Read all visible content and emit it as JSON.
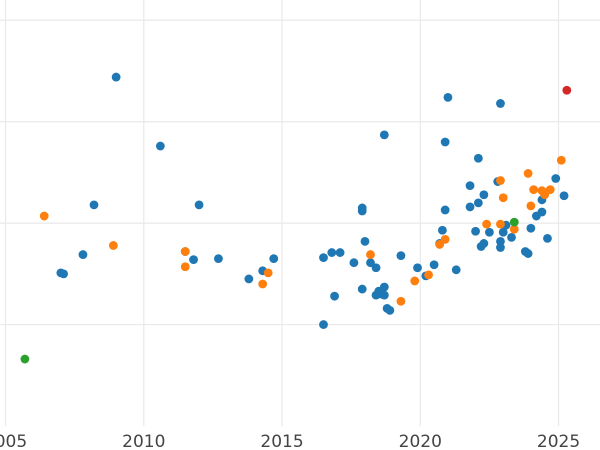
{
  "chart_data": {
    "type": "scatter",
    "title": "",
    "xlabel": "",
    "ylabel": "",
    "xlim": [
      2004.8,
      2026.5
    ],
    "ylim": [
      0,
      4.2
    ],
    "xticks": [
      2005,
      2010,
      2015,
      2020,
      2025
    ],
    "x_tick_labels": [
      "2005",
      "2010",
      "2015",
      "2020",
      "2025"
    ],
    "yticks": [
      1,
      2,
      3,
      4
    ],
    "grid": true,
    "legend": "none",
    "series": [
      {
        "color": "#1f77b4",
        "points": [
          [
            2007.0,
            1.51
          ],
          [
            2007.1,
            1.5
          ],
          [
            2007.8,
            1.69
          ],
          [
            2008.2,
            2.18
          ],
          [
            2009.0,
            3.44
          ],
          [
            2010.6,
            2.76
          ],
          [
            2011.5,
            1.72
          ],
          [
            2011.8,
            1.64
          ],
          [
            2012.0,
            2.18
          ],
          [
            2012.7,
            1.65
          ],
          [
            2013.8,
            1.45
          ],
          [
            2014.3,
            1.53
          ],
          [
            2014.7,
            1.65
          ],
          [
            2016.5,
            1.66
          ],
          [
            2016.5,
            1.0
          ],
          [
            2016.8,
            1.71
          ],
          [
            2016.9,
            1.28
          ],
          [
            2017.1,
            1.71
          ],
          [
            2017.6,
            1.61
          ],
          [
            2017.9,
            1.35
          ],
          [
            2017.9,
            2.15
          ],
          [
            2017.9,
            2.12
          ],
          [
            2018.0,
            1.82
          ],
          [
            2018.2,
            1.61
          ],
          [
            2018.4,
            1.56
          ],
          [
            2018.4,
            1.29
          ],
          [
            2018.5,
            1.33
          ],
          [
            2018.6,
            1.3
          ],
          [
            2018.7,
            1.37
          ],
          [
            2018.7,
            1.29
          ],
          [
            2018.8,
            1.16
          ],
          [
            2018.7,
            2.87
          ],
          [
            2018.9,
            1.14
          ],
          [
            2019.3,
            1.68
          ],
          [
            2019.9,
            1.56
          ],
          [
            2020.2,
            1.48
          ],
          [
            2020.5,
            1.59
          ],
          [
            2020.7,
            1.8
          ],
          [
            2020.8,
            1.93
          ],
          [
            2020.9,
            2.13
          ],
          [
            2020.9,
            2.8
          ],
          [
            2021.0,
            3.24
          ],
          [
            2021.3,
            1.54
          ],
          [
            2021.8,
            2.16
          ],
          [
            2021.8,
            2.37
          ],
          [
            2022.0,
            1.92
          ],
          [
            2022.1,
            2.2
          ],
          [
            2022.1,
            2.64
          ],
          [
            2022.2,
            1.77
          ],
          [
            2022.3,
            2.28
          ],
          [
            2022.3,
            1.8
          ],
          [
            2022.5,
            1.91
          ],
          [
            2022.8,
            2.41
          ],
          [
            2022.9,
            1.82
          ],
          [
            2022.9,
            1.76
          ],
          [
            2022.9,
            3.18
          ],
          [
            2023.0,
            1.91
          ],
          [
            2023.1,
            1.98
          ],
          [
            2023.3,
            1.86
          ],
          [
            2023.8,
            1.72
          ],
          [
            2023.9,
            1.7
          ],
          [
            2024.0,
            1.95
          ],
          [
            2024.2,
            2.07
          ],
          [
            2024.4,
            2.23
          ],
          [
            2024.4,
            2.11
          ],
          [
            2024.6,
            1.85
          ],
          [
            2024.9,
            2.44
          ],
          [
            2025.2,
            2.27
          ]
        ]
      },
      {
        "color": "#ff7f0e",
        "points": [
          [
            2006.4,
            2.07
          ],
          [
            2008.9,
            1.78
          ],
          [
            2011.5,
            1.72
          ],
          [
            2011.5,
            1.57
          ],
          [
            2014.3,
            1.4
          ],
          [
            2014.5,
            1.51
          ],
          [
            2018.2,
            1.69
          ],
          [
            2019.3,
            1.23
          ],
          [
            2019.8,
            1.43
          ],
          [
            2020.3,
            1.49
          ],
          [
            2020.7,
            1.79
          ],
          [
            2020.9,
            1.84
          ],
          [
            2022.4,
            1.99
          ],
          [
            2022.9,
            2.42
          ],
          [
            2022.9,
            1.99
          ],
          [
            2023.0,
            2.25
          ],
          [
            2023.4,
            1.94
          ],
          [
            2023.9,
            2.49
          ],
          [
            2024.0,
            2.17
          ],
          [
            2024.1,
            2.33
          ],
          [
            2024.4,
            2.32
          ],
          [
            2024.5,
            2.28
          ],
          [
            2024.7,
            2.33
          ],
          [
            2025.1,
            2.62
          ]
        ]
      },
      {
        "color": "#2ca02c",
        "points": [
          [
            2005.7,
            0.66
          ],
          [
            2023.4,
            2.01
          ]
        ]
      },
      {
        "color": "#d62728",
        "points": [
          [
            2025.3,
            3.31
          ]
        ]
      }
    ]
  }
}
